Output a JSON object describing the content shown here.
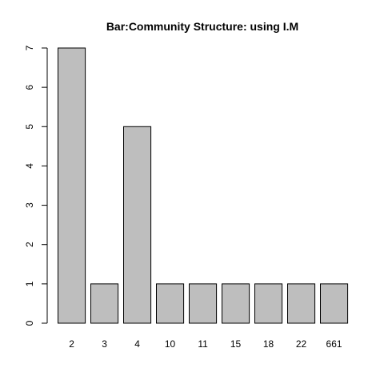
{
  "chart_data": {
    "type": "bar",
    "title": "Bar:Community Structure: using I.M",
    "xlabel": "",
    "ylabel": "",
    "categories": [
      "2",
      "3",
      "4",
      "10",
      "11",
      "15",
      "18",
      "22",
      "661"
    ],
    "values": [
      7,
      1,
      5,
      1,
      1,
      1,
      1,
      1,
      1
    ],
    "yticks": [
      0,
      1,
      2,
      3,
      4,
      5,
      6,
      7
    ],
    "ylim": [
      0,
      7
    ],
    "bar_color": "#bebebe",
    "border_color": "#000000",
    "grid": false,
    "legend": "none"
  }
}
